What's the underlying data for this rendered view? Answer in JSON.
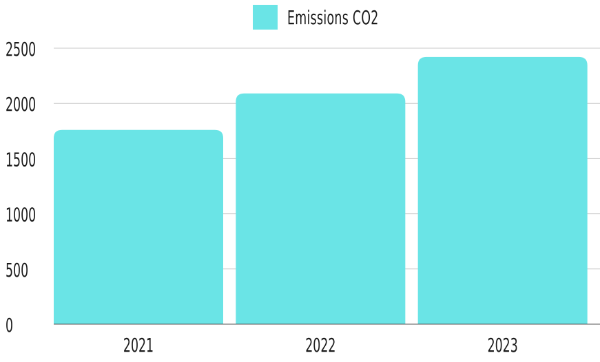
{
  "chart_data": {
    "type": "bar",
    "categories": [
      "2021",
      "2022",
      "2023"
    ],
    "series": [
      {
        "name": "Emissions CO2",
        "values": [
          1760,
          2090,
          2420
        ]
      }
    ],
    "ylim": [
      0,
      2500
    ],
    "yticks": [
      0,
      500,
      1000,
      1500,
      2000,
      2500
    ],
    "grid": true,
    "legend_position": "top-center",
    "colors": {
      "bar": "#6ae4e6",
      "grid": "#c8c8c8",
      "axis": "#555555",
      "text": "#1a1a1a"
    }
  }
}
